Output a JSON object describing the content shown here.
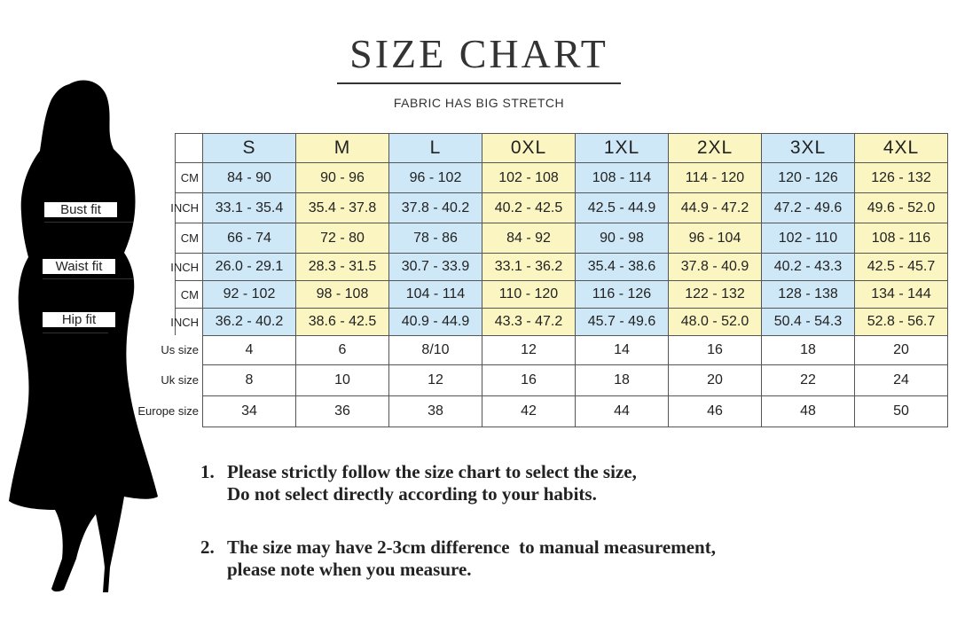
{
  "title": "SIZE CHART",
  "subtitle": "FABRIC HAS BIG STRETCH",
  "body_labels": [
    "Bust fit",
    "Waist fit",
    "Hip fit"
  ],
  "table": {
    "header": [
      "S",
      "M",
      "L",
      "0XL",
      "1XL",
      "2XL",
      "3XL",
      "4XL"
    ],
    "rows": [
      {
        "label": "CM",
        "cells": [
          "84 - 90",
          "90 - 96",
          "96 - 102",
          "102 - 108",
          "108 - 114",
          "114 - 120",
          "120 - 126",
          "126 - 132"
        ]
      },
      {
        "label": "INCH",
        "cells": [
          "33.1 - 35.4",
          "35.4 - 37.8",
          "37.8 - 40.2",
          "40.2 - 42.5",
          "42.5 - 44.9",
          "44.9 - 47.2",
          "47.2 - 49.6",
          "49.6 - 52.0"
        ]
      },
      {
        "label": "CM",
        "cells": [
          "66 - 74",
          "72 - 80",
          "78 - 86",
          "84 - 92",
          "90 - 98",
          "96 - 104",
          "102 - 110",
          "108 - 116"
        ]
      },
      {
        "label": "INCH",
        "cells": [
          "26.0 - 29.1",
          "28.3 - 31.5",
          "30.7 - 33.9",
          "33.1 - 36.2",
          "35.4 - 38.6",
          "37.8 - 40.9",
          "40.2 - 43.3",
          "42.5 - 45.7"
        ]
      },
      {
        "label": "CM",
        "cells": [
          "92 - 102",
          "98 - 108",
          "104 - 114",
          "110 - 120",
          "116 - 126",
          "122 - 132",
          "128 - 138",
          "134 - 144"
        ]
      },
      {
        "label": "INCH",
        "cells": [
          "36.2 - 40.2",
          "38.6 - 42.5",
          "40.9 - 44.9",
          "43.3 - 47.2",
          "45.7 - 49.6",
          "48.0 - 52.0",
          "50.4 - 54.3",
          "52.8 - 56.7"
        ]
      },
      {
        "label": "Us size",
        "cells": [
          "4",
          "6",
          "8/10",
          "12",
          "14",
          "16",
          "18",
          "20"
        ]
      },
      {
        "label": "Uk size",
        "cells": [
          "8",
          "10",
          "12",
          "16",
          "18",
          "20",
          "22",
          "24"
        ]
      },
      {
        "label": "Europe size",
        "cells": [
          "34",
          "36",
          "38",
          "42",
          "44",
          "46",
          "48",
          "50"
        ]
      }
    ]
  },
  "notes": [
    {
      "number": "1.",
      "lines": [
        "Please strictly follow the size chart to select the size,",
        "Do not select directly according to your habits."
      ]
    },
    {
      "number": "2.",
      "lines": [
        "The size may have 2-3cm difference  to manual measurement,",
        "please note when you measure."
      ]
    }
  ]
}
